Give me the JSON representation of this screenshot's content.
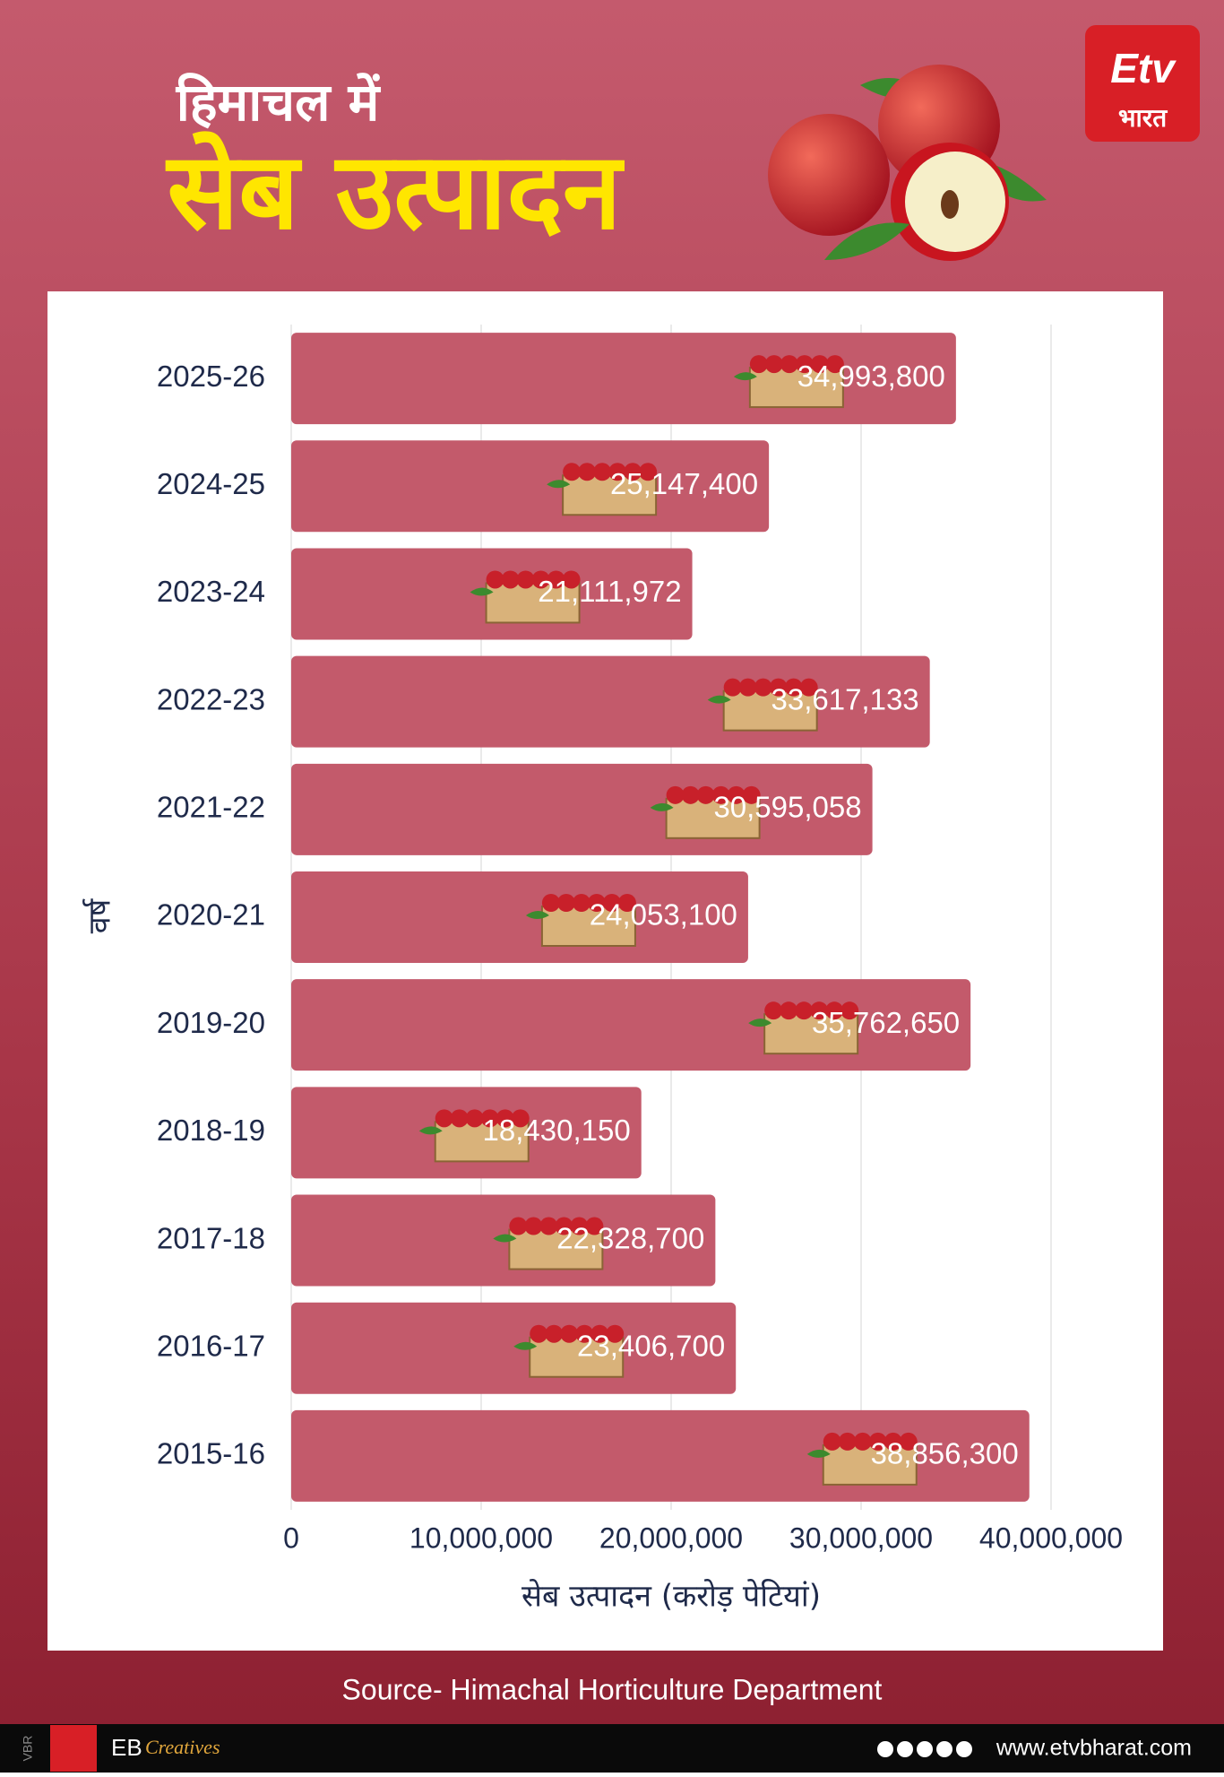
{
  "header": {
    "title_line1": "हिमाचल में",
    "title_line2": "सेब उत्पादन",
    "logo_mark": "Etv",
    "logo_text": "भारत"
  },
  "chart_data": {
    "type": "bar",
    "orientation": "horizontal",
    "categories": [
      "2025-26",
      "2024-25",
      "2023-24",
      "2022-23",
      "2021-22",
      "2020-21",
      "2019-20",
      "2018-19",
      "2017-18",
      "2016-17",
      "2015-16"
    ],
    "values": [
      34993800,
      25147400,
      21111972,
      33617133,
      30595058,
      24053100,
      35762650,
      18430150,
      22328700,
      23406700,
      38856300
    ],
    "value_labels": [
      "34,993,800",
      "25,147,400",
      "21,111,972",
      "33,617,133",
      "30,595,058",
      "24,053,100",
      "35,762,650",
      "18,430,150",
      "22,328,700",
      "23,406,700",
      "38,856,300"
    ],
    "color": "#c35a6b",
    "xlim": [
      0,
      40000000
    ],
    "xticks": [
      0,
      {
        "value": 10000000,
        "label": "10,000,000"
      },
      {
        "value": 20000000,
        "label": "20,000,000"
      },
      {
        "value": 30000000,
        "label": "30,000,000"
      },
      {
        "value": 40000000,
        "label": "40,000,000"
      }
    ],
    "xlabel": "सेब उत्पादन (करोड़ पेटियां)",
    "ylabel": "वर्ष",
    "grid": true
  },
  "footer": {
    "source": "Source- Himachal Horticulture Department",
    "vbr": "VBR",
    "eb": "EB",
    "creatives": "Creatives",
    "website": "www.etvbharat.com"
  }
}
